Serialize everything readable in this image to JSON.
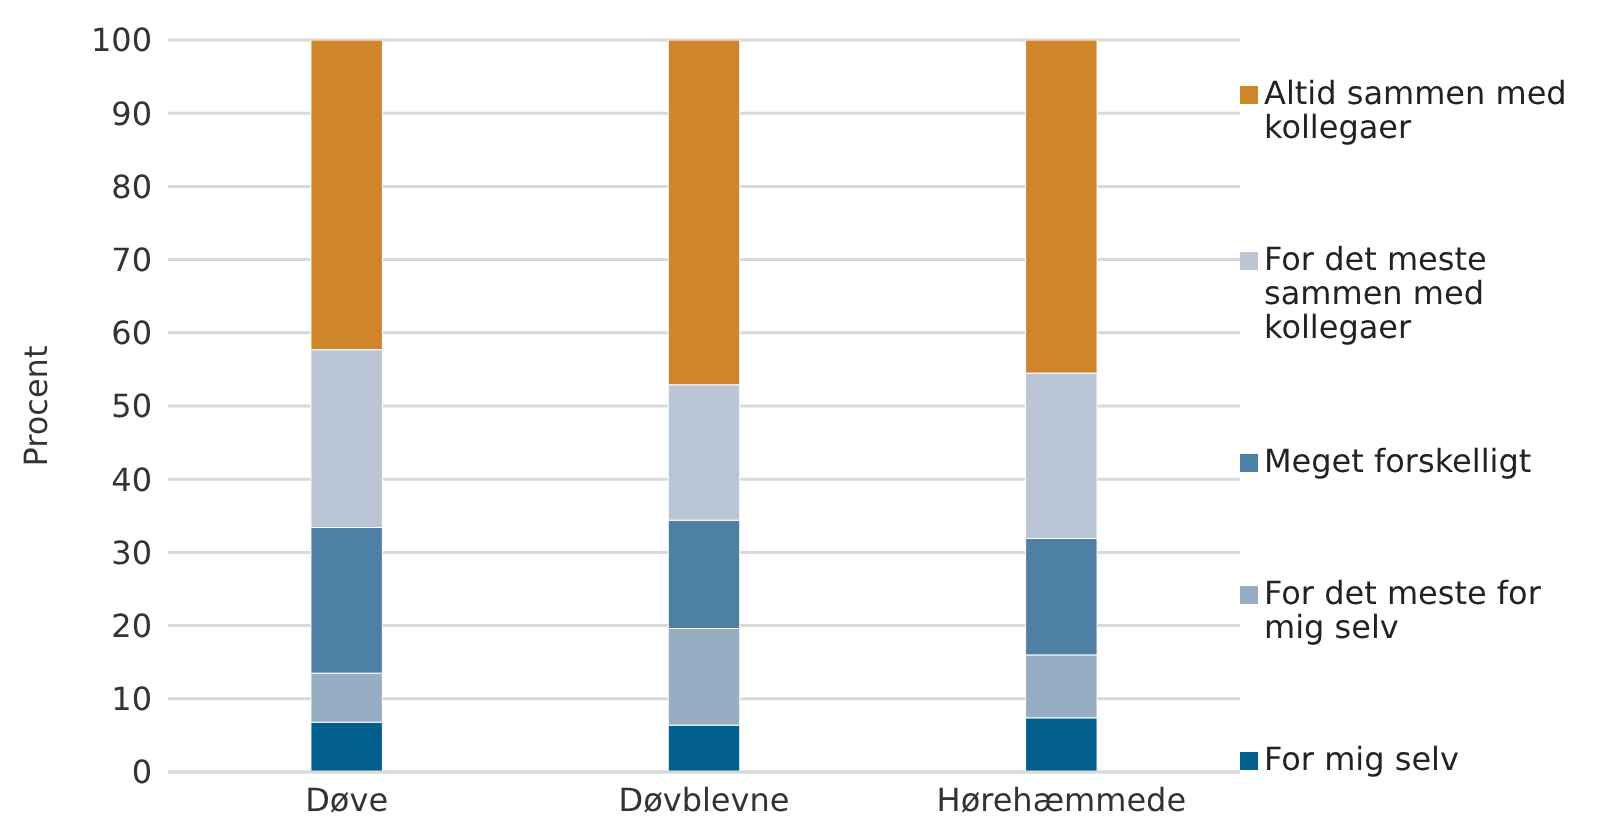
{
  "chart_data": {
    "type": "bar",
    "stacked": true,
    "ylabel": "Procent",
    "categories": [
      "Døve",
      "Døvblevne",
      "Hørehæmmede"
    ],
    "series": [
      {
        "name": "For mig selv",
        "color": "#005f8c",
        "values": [
          6.8,
          6.4,
          7.4
        ]
      },
      {
        "name": "For det meste for mig selv",
        "color": "#97adc4",
        "values": [
          6.7,
          13.2,
          8.6
        ]
      },
      {
        "name": "Meget forskelligt",
        "color": "#4e7fa4",
        "values": [
          19.9,
          14.8,
          15.9
        ]
      },
      {
        "name": "For det meste sammen med kollegaer",
        "color": "#bac6d6",
        "values": [
          24.3,
          18.5,
          22.6
        ]
      },
      {
        "name": "Altid sammen med kollegaer",
        "color": "#cf862a",
        "values": [
          42.3,
          47.1,
          45.5
        ]
      }
    ],
    "ylim": [
      0,
      100
    ],
    "yticks": [
      0,
      10,
      20,
      30,
      40,
      50,
      60,
      70,
      80,
      90,
      100
    ],
    "grid": "y",
    "legend": "right"
  }
}
